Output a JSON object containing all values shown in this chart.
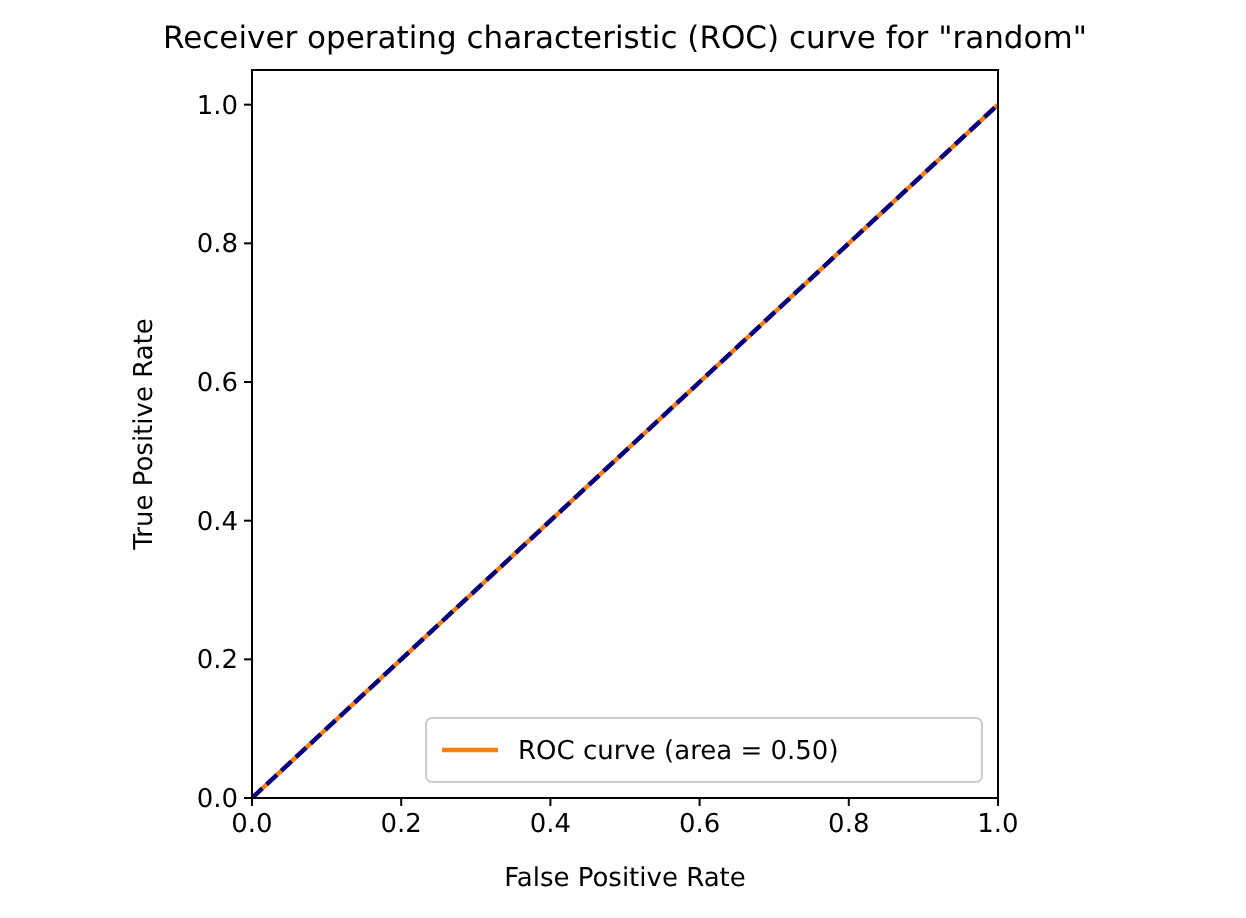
{
  "chart_data": {
    "type": "line",
    "title": "Receiver operating characteristic (ROC) curve for \"random\"",
    "xlabel": "False Positive Rate",
    "ylabel": "True Positive Rate",
    "x": [
      0,
      1
    ],
    "series": [
      {
        "name": "ROC curve (area = 0.50)",
        "color": "#ff7f0e",
        "values": [
          0,
          1
        ],
        "line_style": "solid"
      },
      {
        "color": "#000080",
        "values": [
          0,
          1
        ],
        "line_style": "dashed"
      }
    ],
    "xlim": [
      0,
      1
    ],
    "ylim": [
      0,
      1.05
    ],
    "xticks": [
      {
        "value": 0,
        "label": "0.0"
      },
      {
        "value": 0.2,
        "label": "0.2"
      },
      {
        "value": 0.4,
        "label": "0.4"
      },
      {
        "value": 0.6,
        "label": "0.6"
      },
      {
        "value": 0.8,
        "label": "0.8"
      },
      {
        "value": 1,
        "label": "1.0"
      }
    ],
    "yticks": [
      {
        "value": 0,
        "label": "0.0"
      },
      {
        "value": 0.2,
        "label": "0.2"
      },
      {
        "value": 0.4,
        "label": "0.4"
      },
      {
        "value": 0.6,
        "label": "0.6"
      },
      {
        "value": 0.8,
        "label": "0.8"
      },
      {
        "value": 1,
        "label": "1.0"
      }
    ],
    "grid": false,
    "legend": "bottom right",
    "marker": "none"
  }
}
